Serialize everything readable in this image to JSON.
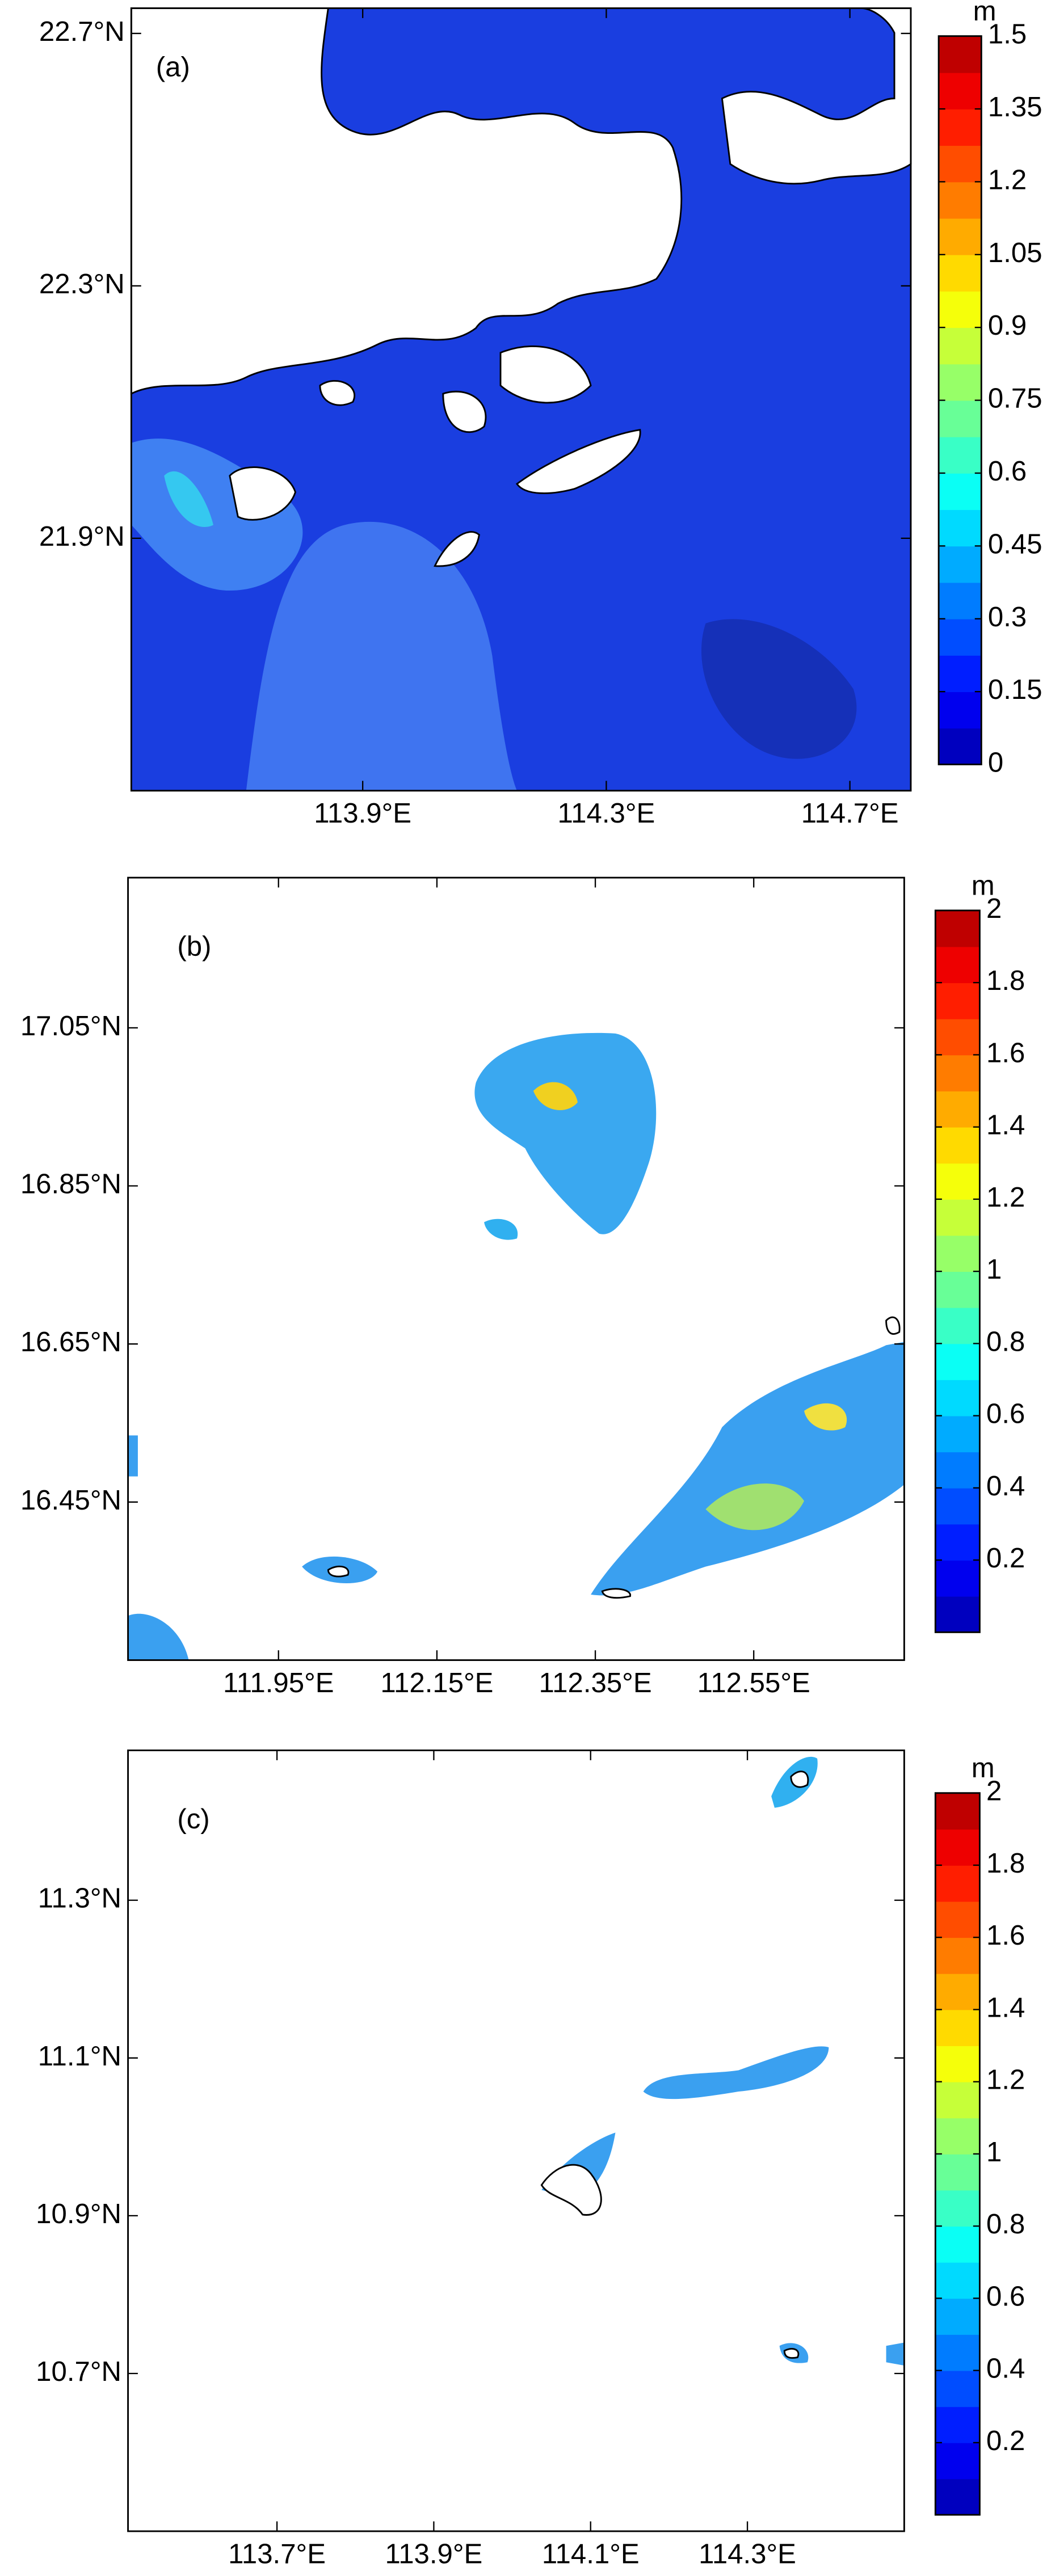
{
  "chart_data": [
    {
      "type": "map",
      "label": "(a)",
      "colormap": "jet",
      "xlim": [
        113.52,
        114.8
      ],
      "ylim": [
        21.5,
        22.74
      ],
      "xticks": [
        {
          "value": 113.9,
          "label": "113.9°E"
        },
        {
          "value": 114.3,
          "label": "114.3°E"
        },
        {
          "value": 114.7,
          "label": "114.7°E"
        }
      ],
      "yticks": [
        {
          "value": 22.7,
          "label": "22.7°N"
        },
        {
          "value": 22.3,
          "label": "22.3°N"
        },
        {
          "value": 21.9,
          "label": "21.9°N"
        }
      ],
      "colorbar": {
        "unit": "m",
        "lim": [
          0,
          1.5
        ],
        "ticks": [
          0,
          0.15,
          0.3,
          0.45,
          0.6,
          0.75,
          0.9,
          1.05,
          1.2,
          1.35,
          1.5
        ]
      }
    },
    {
      "type": "map",
      "label": "(b)",
      "colormap": "jet",
      "xlim": [
        111.76,
        112.74
      ],
      "ylim": [
        16.25,
        17.24
      ],
      "xticks": [
        {
          "value": 111.95,
          "label": "111.95°E"
        },
        {
          "value": 112.15,
          "label": "112.15°E"
        },
        {
          "value": 112.35,
          "label": "112.35°E"
        },
        {
          "value": 112.55,
          "label": "112.55°E"
        }
      ],
      "yticks": [
        {
          "value": 17.05,
          "label": "17.05°N"
        },
        {
          "value": 16.85,
          "label": "16.85°N"
        },
        {
          "value": 16.65,
          "label": "16.65°N"
        },
        {
          "value": 16.45,
          "label": "16.45°N"
        }
      ],
      "colorbar": {
        "unit": "m",
        "lim": [
          0,
          2
        ],
        "ticks": [
          0.2,
          0.4,
          0.6,
          0.8,
          1,
          1.2,
          1.4,
          1.6,
          1.8,
          2
        ]
      }
    },
    {
      "type": "map",
      "label": "(c)",
      "colormap": "jet",
      "xlim": [
        113.51,
        114.5
      ],
      "ylim": [
        10.5,
        11.49
      ],
      "xticks": [
        {
          "value": 113.7,
          "label": "113.7°E"
        },
        {
          "value": 113.9,
          "label": "113.9°E"
        },
        {
          "value": 114.1,
          "label": "114.1°E"
        },
        {
          "value": 114.3,
          "label": "114.3°E"
        }
      ],
      "yticks": [
        {
          "value": 11.3,
          "label": "11.3°N"
        },
        {
          "value": 11.1,
          "label": "11.1°N"
        },
        {
          "value": 10.9,
          "label": "10.9°N"
        },
        {
          "value": 10.7,
          "label": "10.7°N"
        }
      ],
      "colorbar": {
        "unit": "m",
        "lim": [
          0,
          2
        ],
        "ticks": [
          0.2,
          0.4,
          0.6,
          0.8,
          1,
          1.2,
          1.4,
          1.6,
          1.8,
          2
        ]
      }
    }
  ]
}
